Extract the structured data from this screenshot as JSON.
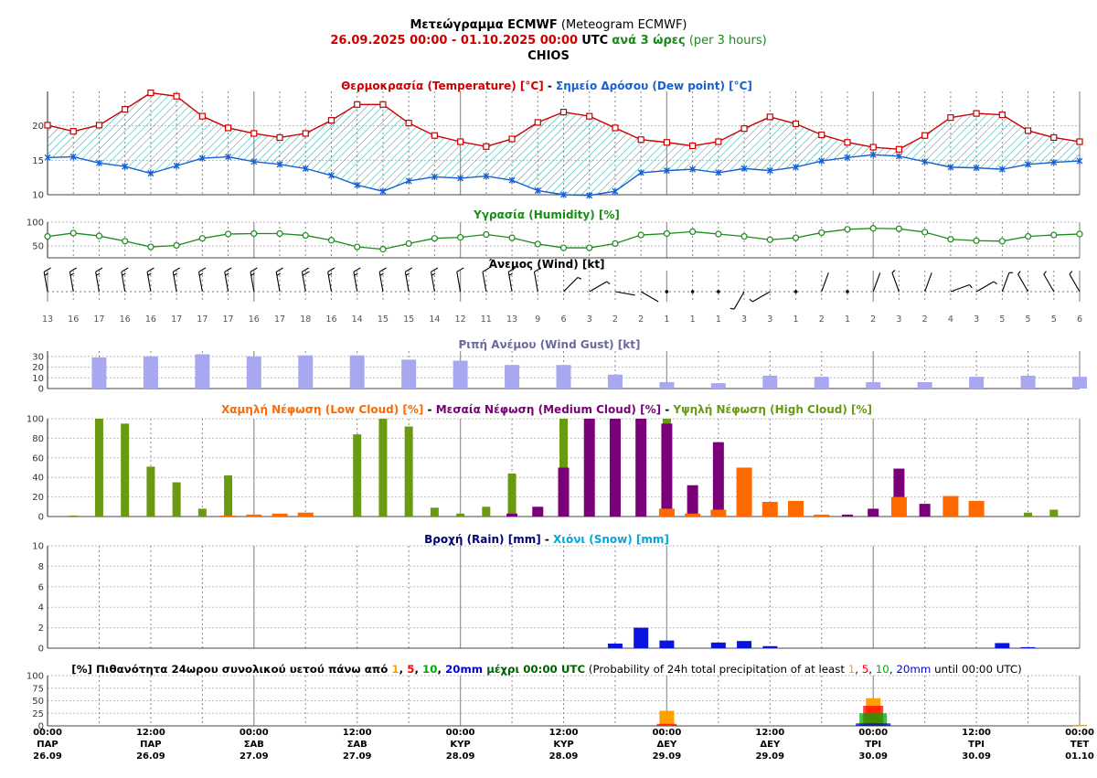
{
  "header": {
    "line1_bold": "Μετεώγραμμα ECMWF",
    "line1_normal": "(Meteogram ECMWF)",
    "line2_range": "26.09.2025 00:00 - 01.10.2025 00:00",
    "line2_utc": "UTC",
    "line2_step_bold": "ανά 3 ώρες",
    "line2_step_normal": "(per 3 hours)",
    "line3": "CHIOS"
  },
  "colors": {
    "temp": "#cc0000",
    "dew": "#1560d4",
    "hatch": "#20a0a0",
    "humidity": "#1a8a1a",
    "gust": "#a8a8f0",
    "gust_title": "#6a6a9a",
    "low_cloud": "#ff6a00",
    "med_cloud": "#7a007a",
    "high_cloud": "#6a9a10",
    "rain": "#0a14e0",
    "rain_title": "#00007a",
    "snow_title": "#00a8e0",
    "p1": "#ff9f00",
    "p5": "#ff0000",
    "p10": "#00aa00",
    "p20": "#0000dd",
    "prob_until": "#006000"
  },
  "titles": {
    "temp_a": "Θερμοκρασία (Temperature) [°C]",
    "sep": " - ",
    "temp_b": "Σημείο Δρόσου (Dew point) [°C]",
    "humidity": "Υγρασία (Humidity) [%]",
    "wind": "Άνεμος (Wind) [kt]",
    "gust": "Ριπή Ανέμου (Wind Gust) [kt]",
    "cloud_low": "Χαμηλή Νέφωση (Low Cloud) [%]",
    "cloud_med": "Μεσαία Νέφωση (Medium Cloud) [%]",
    "cloud_high": "Υψηλή Νέφωση (High Cloud) [%]",
    "rain": "Βροχή (Rain) [mm]",
    "snow": "Χιόνι (Snow) [mm]",
    "prob_a": "[%] Πιθανότητα 24ωρου συνολικού υετού πάνω από",
    "prob_until_gr": "μέχρι 00:00 UTC",
    "prob_b": "(Probability of 24h total precipitation of at least",
    "prob_until_en": "until 00:00 UTC)",
    "prob_thresholds": [
      "1",
      "5",
      "10",
      "20mm"
    ]
  },
  "x_axis": {
    "ticks": [
      {
        "time": "00:00",
        "day": "ΠΑΡ",
        "date": "26.09"
      },
      {
        "time": "12:00",
        "day": "ΠΑΡ",
        "date": "26.09"
      },
      {
        "time": "00:00",
        "day": "ΣΑΒ",
        "date": "27.09"
      },
      {
        "time": "12:00",
        "day": "ΣΑΒ",
        "date": "27.09"
      },
      {
        "time": "00:00",
        "day": "ΚΥΡ",
        "date": "28.09"
      },
      {
        "time": "12:00",
        "day": "ΚΥΡ",
        "date": "28.09"
      },
      {
        "time": "00:00",
        "day": "ΔΕΥ",
        "date": "29.09"
      },
      {
        "time": "12:00",
        "day": "ΔΕΥ",
        "date": "29.09"
      },
      {
        "time": "00:00",
        "day": "ΤΡΙ",
        "date": "30.09"
      },
      {
        "time": "12:00",
        "day": "ΤΡΙ",
        "date": "30.09"
      },
      {
        "time": "00:00",
        "day": "ΤΕΤ",
        "date": "01.10"
      }
    ]
  },
  "chart_data": [
    {
      "type": "line",
      "title": "Θερμοκρασία (Temperature) [°C] - Σημείο Δρόσου (Dew point) [°C]",
      "ylim": [
        10,
        25
      ],
      "yticks": [
        10,
        15,
        20
      ],
      "series": [
        {
          "name": "Θερμοκρασία (Temperature) [°C]",
          "values": [
            20.1,
            19.2,
            20.1,
            22.4,
            24.8,
            24.3,
            21.4,
            19.7,
            18.9,
            18.3,
            18.9,
            20.8,
            23.1,
            23.1,
            20.4,
            18.6,
            17.7,
            17.0,
            18.1,
            20.5,
            22.0,
            21.4,
            19.7,
            18.0,
            17.6,
            17.1,
            17.7,
            19.6,
            21.3,
            20.3,
            18.7,
            17.6,
            16.9,
            16.6,
            18.6,
            21.2,
            21.8,
            21.6,
            19.3,
            18.3,
            17.7
          ]
        },
        {
          "name": "Σημείο Δρόσου (Dew point) [°C]",
          "values": [
            15.4,
            15.5,
            14.6,
            14.1,
            13.1,
            14.2,
            15.3,
            15.5,
            14.8,
            14.4,
            13.8,
            12.8,
            11.4,
            10.5,
            12.0,
            12.6,
            12.4,
            12.7,
            12.1,
            10.6,
            10.0,
            9.9,
            10.5,
            13.2,
            13.5,
            13.7,
            13.2,
            13.8,
            13.5,
            14.0,
            14.9,
            15.4,
            15.8,
            15.6,
            14.8,
            14.0,
            13.9,
            13.7,
            14.4,
            14.7,
            14.9
          ]
        }
      ]
    },
    {
      "type": "line",
      "title": "Υγρασία (Humidity) [%]",
      "ylim": [
        25,
        100
      ],
      "yticks": [
        50,
        100
      ],
      "series": [
        {
          "name": "Υγρασία (Humidity) [%]",
          "values": [
            70,
            77,
            71,
            60,
            48,
            51,
            66,
            75,
            76,
            76,
            72,
            62,
            48,
            43,
            55,
            66,
            68,
            74,
            67,
            54,
            46,
            46,
            55,
            73,
            76,
            80,
            75,
            70,
            63,
            67,
            78,
            85,
            87,
            86,
            79,
            64,
            61,
            60,
            70,
            73,
            75
          ]
        }
      ]
    },
    {
      "type": "table",
      "title": "Άνεμος (Wind) [kt]",
      "speed_kt": [
        13,
        16,
        17,
        16,
        16,
        17,
        17,
        17,
        16,
        17,
        18,
        16,
        14,
        15,
        15,
        14,
        12,
        11,
        13,
        9,
        6,
        3,
        2,
        2,
        1,
        1,
        1,
        3,
        3,
        1,
        2,
        1,
        2,
        3,
        2,
        4,
        3,
        5,
        5,
        5,
        6
      ],
      "direction_from_deg": [
        350,
        350,
        350,
        350,
        350,
        350,
        350,
        350,
        350,
        350,
        350,
        350,
        350,
        350,
        350,
        350,
        350,
        350,
        350,
        350,
        45,
        60,
        100,
        120,
        0,
        0,
        140,
        210,
        240,
        0,
        20,
        340,
        20,
        340,
        20,
        70,
        60,
        20,
        330,
        330,
        330
      ]
    },
    {
      "type": "bar",
      "title": "Ριπή Ανέμου (Wind Gust) [kt]",
      "ylim": [
        0,
        35
      ],
      "yticks": [
        0,
        10,
        20,
        30
      ],
      "x_index": [
        2,
        4,
        6,
        8,
        10,
        12,
        14,
        16,
        18,
        20,
        22,
        24,
        26,
        28,
        30,
        32,
        34,
        36,
        38,
        40
      ],
      "values": [
        29,
        30,
        32,
        30,
        31,
        31,
        27,
        26,
        22,
        22,
        13,
        6,
        5,
        12,
        11,
        6,
        6,
        11,
        12,
        11
      ]
    },
    {
      "type": "bar",
      "title": "Χαμηλή Νέφωση (Low Cloud) [%] - Μεσαία Νέφωση (Medium Cloud) [%] - Υψηλή Νέφωση (High Cloud) [%]",
      "ylim": [
        0,
        100
      ],
      "yticks": [
        0,
        20,
        40,
        60,
        80,
        100
      ],
      "series": [
        {
          "name": "Υψηλή Νέφωση (High Cloud) [%]",
          "values": [
            0,
            1,
            100,
            95,
            51,
            35,
            8,
            42,
            0,
            0,
            0,
            0,
            84,
            100,
            92,
            9,
            3,
            10,
            44,
            0,
            100,
            100,
            100,
            100,
            100,
            0,
            0,
            0,
            0,
            0,
            0,
            0,
            0,
            0,
            0,
            0,
            0,
            0,
            4,
            7,
            0
          ]
        },
        {
          "name": "Μεσαία Νέφωση (Medium Cloud) [%]",
          "values": [
            0,
            0,
            0,
            0,
            0,
            0,
            0,
            0,
            0,
            0,
            0,
            0,
            0,
            0,
            0,
            0,
            0,
            0,
            3,
            10,
            50,
            100,
            100,
            100,
            95,
            32,
            76,
            0,
            0,
            0,
            1,
            2,
            8,
            49,
            13,
            0,
            0,
            0,
            0,
            0,
            0
          ]
        },
        {
          "name": "Χαμηλή Νέφωση (Low Cloud) [%]",
          "values": [
            0,
            0,
            0,
            0,
            0,
            0,
            0,
            1,
            2,
            3,
            4,
            0,
            0,
            0,
            0,
            0,
            0,
            0,
            0,
            0,
            0,
            0,
            0,
            0,
            8,
            3,
            7,
            50,
            15,
            16,
            2,
            0,
            0,
            20,
            0,
            21,
            16,
            0,
            0,
            0,
            0
          ]
        }
      ]
    },
    {
      "type": "bar",
      "title": "Βροχή (Rain) [mm] - Χιόνι (Snow) [mm]",
      "ylim": [
        0,
        10
      ],
      "yticks": [
        0,
        2,
        4,
        6,
        8,
        10
      ],
      "series": [
        {
          "name": "Βροχή (Rain) [mm]",
          "values": [
            0,
            0,
            0,
            0,
            0,
            0,
            0,
            0,
            0,
            0,
            0,
            0,
            0,
            0,
            0,
            0,
            0,
            0,
            0,
            0,
            0,
            0,
            0.45,
            2.0,
            0.75,
            0,
            0.55,
            0.7,
            0.2,
            0,
            0,
            0,
            0,
            0,
            0,
            0,
            0,
            0.5,
            0.1,
            0,
            0
          ]
        },
        {
          "name": "Χιόνι (Snow) [mm]",
          "values": [
            0,
            0,
            0,
            0,
            0,
            0,
            0,
            0,
            0,
            0,
            0,
            0,
            0,
            0,
            0,
            0,
            0,
            0,
            0,
            0,
            0,
            0,
            0,
            0,
            0,
            0,
            0,
            0,
            0,
            0,
            0,
            0,
            0,
            0,
            0,
            0,
            0,
            0,
            0,
            0,
            0
          ]
        }
      ]
    },
    {
      "type": "bar",
      "title": "[%] Πιθανότητα 24ωρου συνολικού υετού πάνω από 1, 5, 10, 20mm μέχρι 00:00 UTC",
      "ylim": [
        0,
        100
      ],
      "yticks": [
        0,
        25,
        50,
        75,
        100
      ],
      "categories": [
        "26.09",
        "27.09",
        "28.09",
        "29.09",
        "30.09",
        "01.10"
      ],
      "series": [
        {
          "name": "1",
          "values": [
            0,
            0,
            0,
            30,
            55,
            2
          ]
        },
        {
          "name": "5",
          "values": [
            0,
            0,
            0,
            4,
            40,
            0
          ]
        },
        {
          "name": "10",
          "values": [
            0,
            0,
            0,
            0,
            25,
            0
          ]
        },
        {
          "name": "20mm",
          "values": [
            0,
            0,
            0,
            0,
            5,
            0
          ]
        }
      ]
    }
  ]
}
